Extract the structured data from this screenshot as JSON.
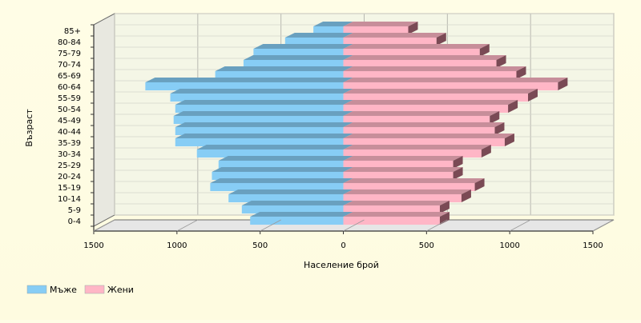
{
  "chart_data": {
    "type": "bar",
    "orientation": "horizontal",
    "subtype": "population-pyramid",
    "title": "",
    "xlabel": "Население брой",
    "ylabel": "Възраст",
    "xlim": [
      -1500,
      1500
    ],
    "x_ticks": [
      "1500",
      "1000",
      "500",
      "0",
      "500",
      "1000",
      "1500"
    ],
    "x_tick_values": [
      -1500,
      -1000,
      -500,
      0,
      500,
      1000,
      1500
    ],
    "categories": [
      "0-4",
      "5-9",
      "10-14",
      "15-19",
      "20-24",
      "25-29",
      "30-34",
      "35-39",
      "40-44",
      "45-49",
      "50-54",
      "55-59",
      "60-64",
      "65-69",
      "70-74",
      "75-79",
      "80-84",
      "85+"
    ],
    "series": [
      {
        "name": "Мъже",
        "color": "#87cdf5",
        "values": [
          560,
          610,
          690,
          800,
          790,
          750,
          880,
          1010,
          1010,
          1020,
          1010,
          1040,
          1190,
          770,
          600,
          540,
          350,
          180
        ]
      },
      {
        "name": "Жени",
        "color": "#ffb6c6",
        "values": [
          580,
          580,
          710,
          790,
          660,
          660,
          830,
          970,
          910,
          880,
          990,
          1110,
          1290,
          1040,
          920,
          820,
          560,
          390
        ]
      }
    ],
    "grid": true,
    "legend_position": "bottom-left",
    "style": "3d"
  }
}
